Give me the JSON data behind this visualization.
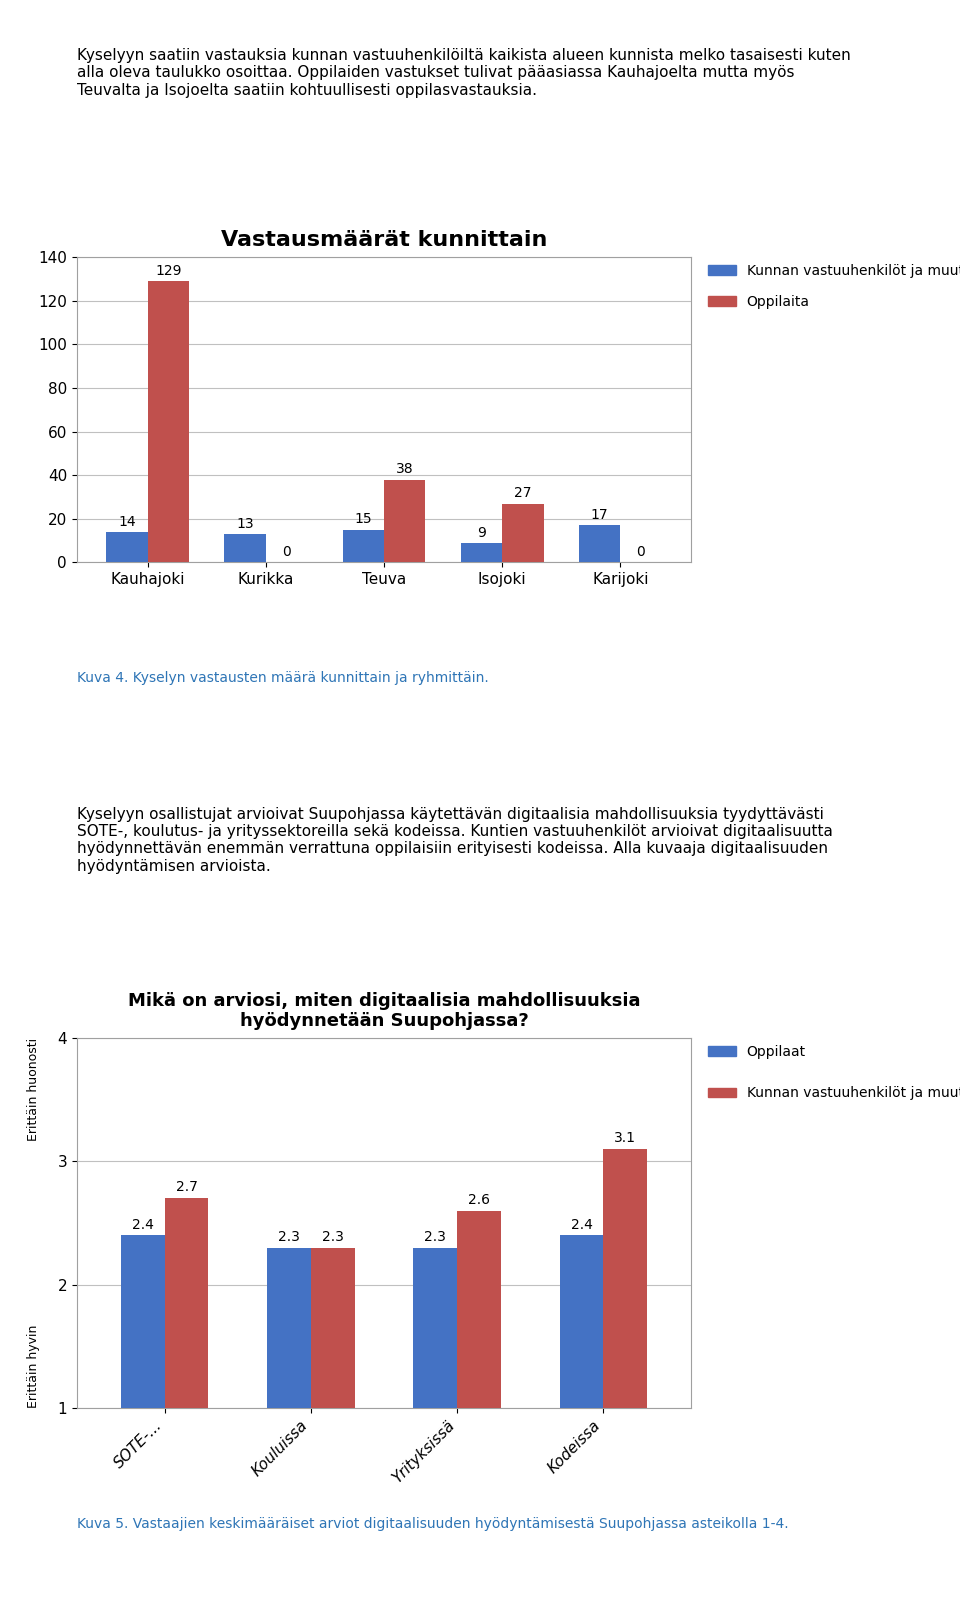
{
  "chart1": {
    "title": "Vastausmäärät kunnittain",
    "categories": [
      "Kauhajoki",
      "Kurikka",
      "Teuva",
      "Isojoki",
      "Karijoki"
    ],
    "blue_values": [
      14,
      13,
      15,
      9,
      17
    ],
    "red_values": [
      129,
      0,
      38,
      27,
      0
    ],
    "blue_color": "#4472C4",
    "red_color": "#C0504D",
    "ylim": [
      0,
      140
    ],
    "yticks": [
      0,
      20,
      40,
      60,
      80,
      100,
      120,
      140
    ],
    "legend1": "Kunnan vastuuhenkilöt ja muut",
    "legend2": "Oppilaita",
    "title_fontsize": 16,
    "tick_fontsize": 11,
    "label_fontsize": 10
  },
  "chart2": {
    "title": "Mikä on arviosi, miten digitaalisia mahdollisuuksia\nhyödynnetään Suupohjassa?",
    "categories": [
      "SOTE-...",
      "Kouluissa",
      "Yrityksissä",
      "Kodeissa"
    ],
    "blue_values": [
      2.4,
      2.3,
      2.3,
      2.4
    ],
    "red_values": [
      2.7,
      2.3,
      2.6,
      3.1
    ],
    "blue_color": "#4472C4",
    "red_color": "#C0504D",
    "ylim": [
      1,
      4
    ],
    "yticks": [
      1,
      2,
      3,
      4
    ],
    "ylabel_top": "Erittäin huonosti",
    "ylabel_bottom": "Erittäin hyvin",
    "legend1": "Oppilaat",
    "legend2": "Kunnan vastuuhenkilöt ja muut",
    "title_fontsize": 13,
    "tick_fontsize": 11
  },
  "caption1": "Kuva 4. Kyselyn vastausten määrä kunnittain ja ryhmittäin.",
  "caption2": "Kuva 5. Vastaajien keskimääräiset arviot digitaalisuuden hyödyntämisestä Suupohjassa asteikolla 1-4.",
  "text1": "Kyselyyn saatiin vastauksia kunnan vastuuhenkilöiltä kaikista alueen kunnista melko tasaisesti kuten\nalla oleva taulukko osoittaa. Oppilaiden vastukset tulivat pääasiassa Kauhajoelta mutta myös\nTeuvalta ja Isojoelta saatiin kohtuullisesti oppilasvastauksia.",
  "text2": "Kyselyyn osallistujat arvioivat Suupohjassa käytettävän digitaalisia mahdollisuuksia tyydyttävästi\nSOTE-, koulutus- ja yrityssektoreilla sekä kodeissa. Kuntien vastuuhenkilöt arvioivat digitaalisuutta\nhyödynnettävän enemmän verrattuna oppilaisiin erityisesti kodeissa. Alla kuvaaja digitaalisuuden\nhyödyntämisen arvioista.",
  "bg_color": "#FFFFFF",
  "chart_bg": "#FFFFFF",
  "grid_color": "#C0C0C0",
  "border_color": "#A0A0A0"
}
